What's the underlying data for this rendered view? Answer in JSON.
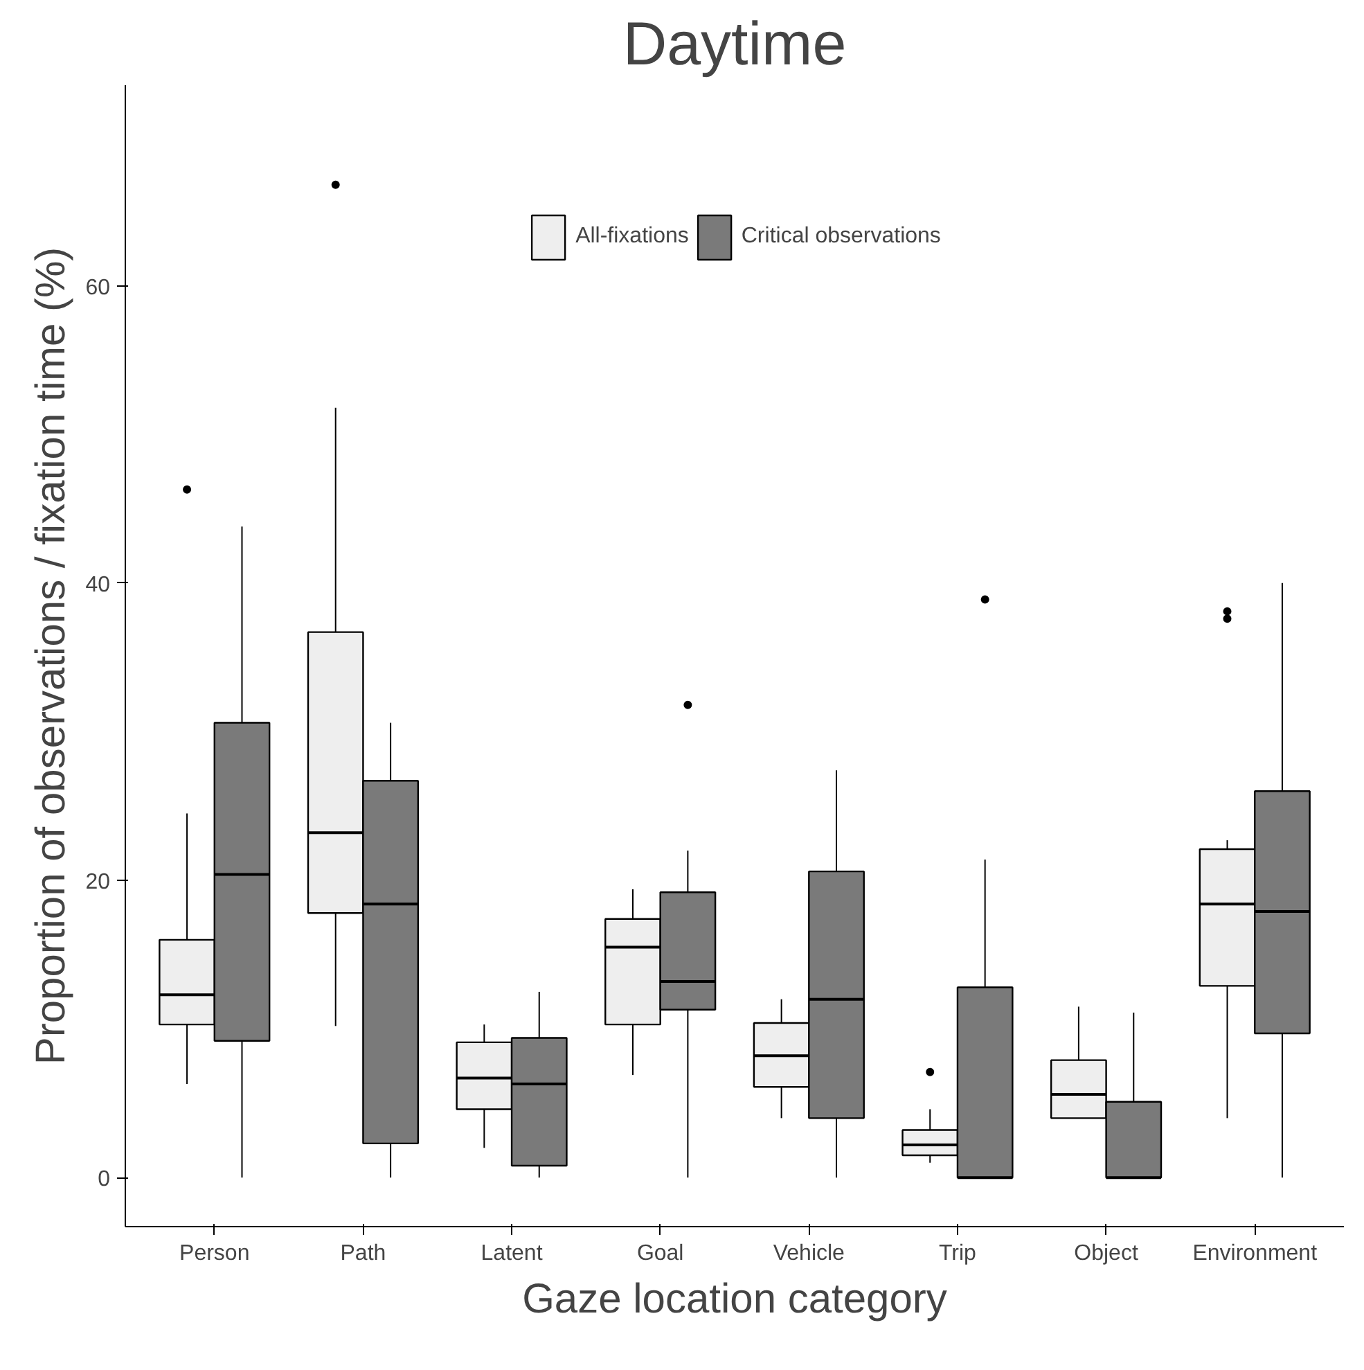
{
  "chart_data": {
    "type": "box",
    "title": "Daytime",
    "xlabel": "Gaze location category",
    "ylabel": "Proportion of observations / fixation time (%)",
    "categories": [
      "Person",
      "Path",
      "Latent",
      "Goal",
      "Vehicle",
      "Trip",
      "Object",
      "Environment"
    ],
    "ylim": [
      -3.3,
      73.5
    ],
    "yticks": [
      0,
      20,
      40,
      60
    ],
    "grid": false,
    "legend": "top",
    "series": [
      {
        "name": "All-fixations",
        "color": "#eeeeee",
        "boxes": [
          {
            "low": 6.3,
            "q1": 10.3,
            "median": 12.3,
            "q3": 16,
            "high": 24.5,
            "outliers": [
              46.3
            ]
          },
          {
            "low": 10.2,
            "q1": 17.8,
            "median": 23.2,
            "q3": 36.7,
            "high": 51.8,
            "outliers": [
              66.8
            ]
          },
          {
            "low": 2,
            "q1": 4.6,
            "median": 6.7,
            "q3": 9.1,
            "high": 10.3
          },
          {
            "low": 6.9,
            "q1": 10.3,
            "median": 15.5,
            "q3": 17.4,
            "high": 19.4
          },
          {
            "low": 4,
            "q1": 6.1,
            "median": 8.2,
            "q3": 10.4,
            "high": 12
          },
          {
            "low": 1,
            "q1": 1.5,
            "median": 2.2,
            "q3": 3.2,
            "high": 4.6,
            "outliers": [
              7.1
            ]
          },
          {
            "low": 4,
            "q1": 4,
            "median": 5.6,
            "q3": 7.9,
            "high": 11.5
          },
          {
            "low": 4,
            "q1": 12.9,
            "median": 18.4,
            "q3": 22.1,
            "high": 22.7,
            "outliers": [
              37.6,
              38.1
            ]
          }
        ]
      },
      {
        "name": "Critical observations",
        "color": "#7a7a7a",
        "boxes": [
          {
            "low": 0,
            "q1": 9.2,
            "median": 20.4,
            "q3": 30.6,
            "high": 43.8
          },
          {
            "low": 0,
            "q1": 2.3,
            "median": 18.4,
            "q3": 26.7,
            "high": 30.6
          },
          {
            "low": 0,
            "q1": 0.8,
            "median": 6.3,
            "q3": 9.4,
            "high": 12.5
          },
          {
            "low": 0,
            "q1": 11.3,
            "median": 13.2,
            "q3": 19.2,
            "high": 22,
            "outliers": [
              31.8
            ]
          },
          {
            "low": 0,
            "q1": 4,
            "median": 12,
            "q3": 20.6,
            "high": 27.4
          },
          {
            "low": 0,
            "q1": 0,
            "median": 0,
            "q3": 12.8,
            "high": 21.4,
            "outliers": [
              38.9
            ]
          },
          {
            "low": 0,
            "q1": 0,
            "median": 0,
            "q3": 5.1,
            "high": 11.1
          },
          {
            "low": 0,
            "q1": 9.7,
            "median": 17.9,
            "q3": 26,
            "high": 40
          }
        ]
      }
    ]
  }
}
